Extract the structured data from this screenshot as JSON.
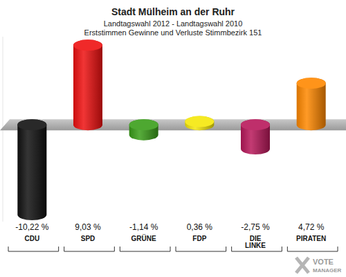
{
  "chart_data": {
    "type": "bar",
    "title": "Stadt Mülheim an der Ruhr",
    "subtitle": [
      "Landtagswahl 2012 - Landtagswahl 2010",
      "Erststimmen Gewinne und Verluste Stimmbezirk 151"
    ],
    "categories": [
      "CDU",
      "SPD",
      "GRÜNE",
      "FDP",
      "DIE LINKE",
      "PIRATEN"
    ],
    "values": [
      -10.22,
      9.03,
      -1.14,
      0.36,
      -2.75,
      4.72
    ],
    "value_labels": [
      "-10,22 %",
      "9,03 %",
      "-1,14 %",
      "0,36 %",
      "-2,75 %",
      "4,72 %"
    ],
    "colors": [
      "#111111",
      "#ee1111",
      "#3a9e1a",
      "#f5e80a",
      "#b8185a",
      "#ff8800"
    ],
    "ylim": [
      -11,
      10
    ],
    "yticks": [
      0
    ],
    "tick_labels": "x",
    "data_labels": true,
    "annotations": [
      "VOTE",
      "MANAGER"
    ]
  }
}
